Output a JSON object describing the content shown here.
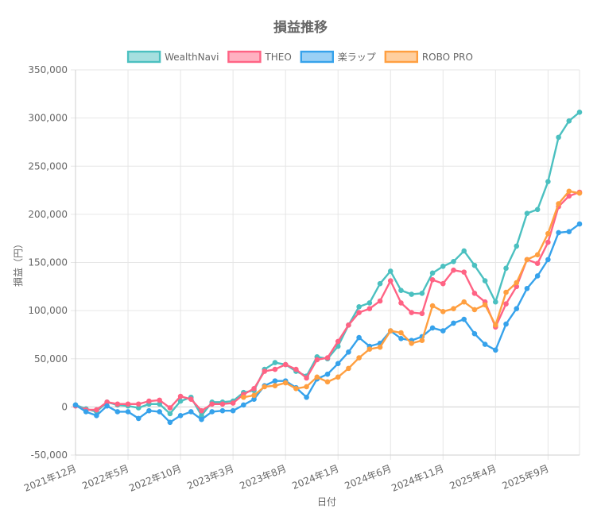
{
  "chart_data": {
    "type": "line",
    "title": "損益推移",
    "xlabel": "日付",
    "ylabel": "損益（円）",
    "ylim": [
      -50000,
      350000
    ],
    "yticks": [
      -50000,
      0,
      50000,
      100000,
      150000,
      200000,
      250000,
      300000,
      350000
    ],
    "ytick_labels": [
      "-50,000",
      "0",
      "50,000",
      "100,000",
      "150,000",
      "200,000",
      "250,000",
      "300,000",
      "350,000"
    ],
    "xtick_labels": [
      "2021年12月",
      "2022年5月",
      "2022年10月",
      "2023年3月",
      "2023年8月",
      "2024年1月",
      "2024年6月",
      "2024年11月",
      "2025年4月",
      "2025年9月"
    ],
    "x_start": "2021年12月",
    "grid": true,
    "legend_position": "top",
    "series": [
      {
        "name": "WealthNavi",
        "color": "#4bc0c0",
        "fill": "#a5dfdf",
        "values": [
          2000,
          -2000,
          -5000,
          5000,
          2000,
          1000,
          -1000,
          3000,
          3000,
          -7000,
          6000,
          10000,
          -9000,
          5000,
          5000,
          6000,
          15000,
          17000,
          39000,
          46000,
          44000,
          37000,
          32000,
          52000,
          50000,
          63000,
          85000,
          104000,
          108000,
          128000,
          141000,
          121000,
          117000,
          118000,
          139000,
          146000,
          151000,
          162000,
          147000,
          131000,
          109000,
          144000,
          167000,
          201000,
          205000,
          234000,
          280000,
          297000,
          306000
        ]
      },
      {
        "name": "THEO",
        "color": "#ff6384",
        "fill": "#ffb1c1",
        "values": [
          1000,
          -3000,
          -3000,
          5000,
          3000,
          3000,
          3000,
          6000,
          7000,
          -1000,
          11000,
          8000,
          -4000,
          3000,
          3000,
          4000,
          13000,
          19000,
          37000,
          39000,
          44000,
          39000,
          30000,
          49000,
          51000,
          68000,
          85000,
          98000,
          102000,
          110000,
          131000,
          108000,
          98000,
          97000,
          132000,
          128000,
          142000,
          140000,
          118000,
          109000,
          83000,
          107000,
          125000,
          153000,
          149000,
          171000,
          208000,
          219000,
          223000
        ]
      },
      {
        "name": "楽ラップ",
        "color": "#36a2eb",
        "fill": "#9ad0f5",
        "values": [
          2000,
          -5000,
          -9000,
          1000,
          -5000,
          -5000,
          -12000,
          -4000,
          -5000,
          -16000,
          -9000,
          -5000,
          -13000,
          -5000,
          -4000,
          -4000,
          2000,
          8000,
          22000,
          27000,
          27000,
          20000,
          10000,
          29000,
          34000,
          45000,
          57000,
          72000,
          63000,
          66000,
          79000,
          71000,
          69000,
          73000,
          82000,
          79000,
          87000,
          91000,
          76000,
          65000,
          59000,
          86000,
          102000,
          123000,
          136000,
          153000,
          181000,
          182000,
          190000
        ]
      },
      {
        "name": "ROBO PRO",
        "color": "#ff9f40",
        "fill": "#ffcf9f",
        "values": [
          null,
          null,
          null,
          null,
          null,
          null,
          null,
          null,
          null,
          null,
          null,
          null,
          null,
          null,
          null,
          null,
          10000,
          12000,
          21000,
          22000,
          25000,
          19000,
          21000,
          31000,
          26000,
          31000,
          40000,
          51000,
          60000,
          62000,
          79000,
          77000,
          66000,
          69000,
          105000,
          99000,
          102000,
          109000,
          101000,
          106000,
          85000,
          119000,
          129000,
          153000,
          158000,
          180000,
          211000,
          224000,
          222000
        ]
      }
    ]
  }
}
